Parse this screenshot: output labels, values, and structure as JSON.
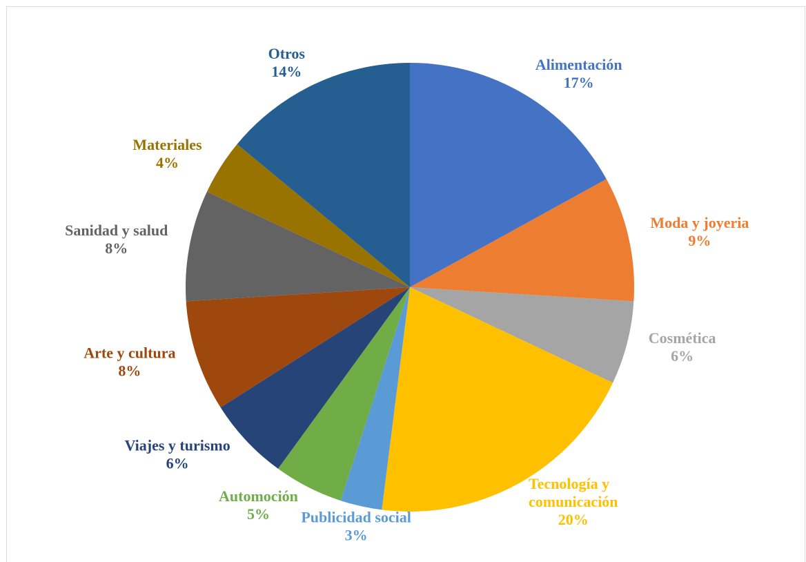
{
  "chart_data": {
    "type": "pie",
    "categories": [
      "Alimentación",
      "Moda y joyeria",
      "Cosmética",
      "Tecnología y comunicación",
      "Publicidad social",
      "Automoción",
      "Viajes y turismo",
      "Arte y cultura",
      "Sanidad y salud",
      "Materiales",
      "Otros"
    ],
    "values": [
      17,
      9,
      6,
      20,
      3,
      5,
      6,
      8,
      8,
      4,
      14
    ],
    "value_labels": [
      "17%",
      "9%",
      "6%",
      "20%",
      "3%",
      "5%",
      "6%",
      "8%",
      "8%",
      "4%",
      "14%"
    ],
    "colors": [
      "#4472c4",
      "#ed7d31",
      "#a5a5a5",
      "#ffc000",
      "#5b9bd5",
      "#70ad47",
      "#264478",
      "#9e480e",
      "#636363",
      "#997300",
      "#255e91"
    ]
  }
}
